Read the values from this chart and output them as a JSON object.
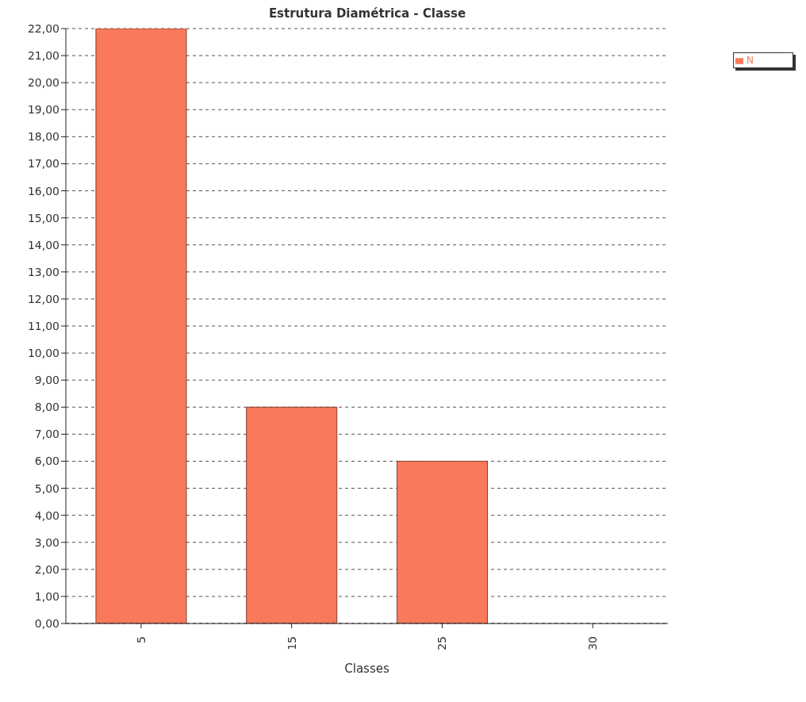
{
  "chart_data": {
    "type": "bar",
    "title": "Estrutura Diamétrica - Classe",
    "xlabel": "Classes",
    "categories": [
      "5",
      "15",
      "25",
      "30"
    ],
    "series": [
      {
        "name": "N",
        "color": "#f87a5a",
        "values": [
          22,
          8,
          6,
          0
        ]
      }
    ],
    "ylim": [
      0,
      22
    ],
    "yticks": [
      {
        "value": 0,
        "label": "0,00"
      },
      {
        "value": 1,
        "label": "1,00"
      },
      {
        "value": 2,
        "label": "2,00"
      },
      {
        "value": 3,
        "label": "3,00"
      },
      {
        "value": 4,
        "label": "4,00"
      },
      {
        "value": 5,
        "label": "5,00"
      },
      {
        "value": 6,
        "label": "6,00"
      },
      {
        "value": 7,
        "label": "7,00"
      },
      {
        "value": 8,
        "label": "8,00"
      },
      {
        "value": 9,
        "label": "9,00"
      },
      {
        "value": 10,
        "label": "10,00"
      },
      {
        "value": 11,
        "label": "11,00"
      },
      {
        "value": 12,
        "label": "12,00"
      },
      {
        "value": 13,
        "label": "13,00"
      },
      {
        "value": 14,
        "label": "14,00"
      },
      {
        "value": 15,
        "label": "15,00"
      },
      {
        "value": 16,
        "label": "16,00"
      },
      {
        "value": 17,
        "label": "17,00"
      },
      {
        "value": 18,
        "label": "18,00"
      },
      {
        "value": 19,
        "label": "19,00"
      },
      {
        "value": 20,
        "label": "20,00"
      },
      {
        "value": 21,
        "label": "21,00"
      },
      {
        "value": 22,
        "label": "22,00"
      }
    ],
    "grid": "y",
    "legend": "top right"
  }
}
